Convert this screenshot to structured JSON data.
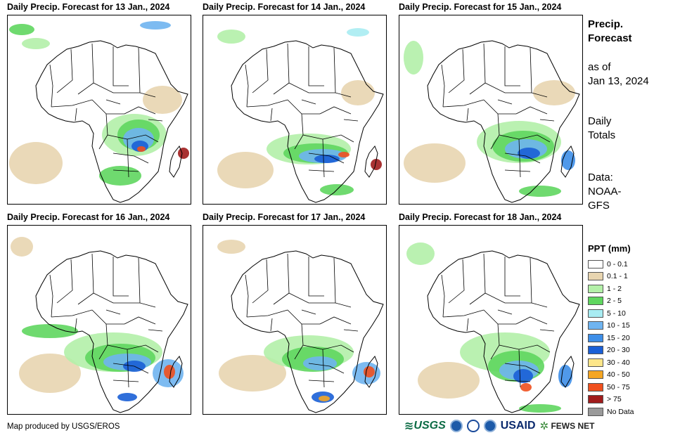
{
  "panels": [
    {
      "title": "Daily Precip. Forecast for 13 Jan., 2024"
    },
    {
      "title": "Daily Precip. Forecast for 14 Jan., 2024"
    },
    {
      "title": "Daily Precip. Forecast for 15 Jan., 2024"
    },
    {
      "title": "Daily Precip. Forecast for 16 Jan., 2024"
    },
    {
      "title": "Daily Precip. Forecast for 17 Jan., 2024"
    },
    {
      "title": "Daily Precip. Forecast for 18 Jan., 2024"
    }
  ],
  "sidebar": {
    "title_line1": "Precip.",
    "title_line2": "Forecast",
    "asof_line1": "as of",
    "asof_line2": "Jan 13, 2024",
    "totals_line1": "Daily",
    "totals_line2": "Totals",
    "source_line1": "Data:",
    "source_line2": "NOAA-",
    "source_line3": "GFS"
  },
  "legend": {
    "title": "PPT (mm)",
    "items": [
      {
        "label": "0 - 0.1",
        "color": "#ffffff"
      },
      {
        "label": "0.1 - 1",
        "color": "#e8d5b0"
      },
      {
        "label": "1 - 2",
        "color": "#b3f0a8"
      },
      {
        "label": "2 - 5",
        "color": "#5fd65f"
      },
      {
        "label": "5 - 10",
        "color": "#a8ecf2"
      },
      {
        "label": "10 - 15",
        "color": "#6fb4f0"
      },
      {
        "label": "15 - 20",
        "color": "#3d8ee8"
      },
      {
        "label": "20 - 30",
        "color": "#1a5fd6"
      },
      {
        "label": "30 - 40",
        "color": "#fde68a"
      },
      {
        "label": "40 - 50",
        "color": "#f5a623"
      },
      {
        "label": "50 - 75",
        "color": "#f0501e"
      },
      {
        "label": "> 75",
        "color": "#a01c1c"
      },
      {
        "label": "No Data",
        "color": "#9a9a9a"
      }
    ]
  },
  "footer": {
    "credit": "Map produced by USGS/EROS",
    "logo_usgs": "USGS",
    "logo_usaid": "USAID",
    "logo_fews": "FEWS NET"
  }
}
